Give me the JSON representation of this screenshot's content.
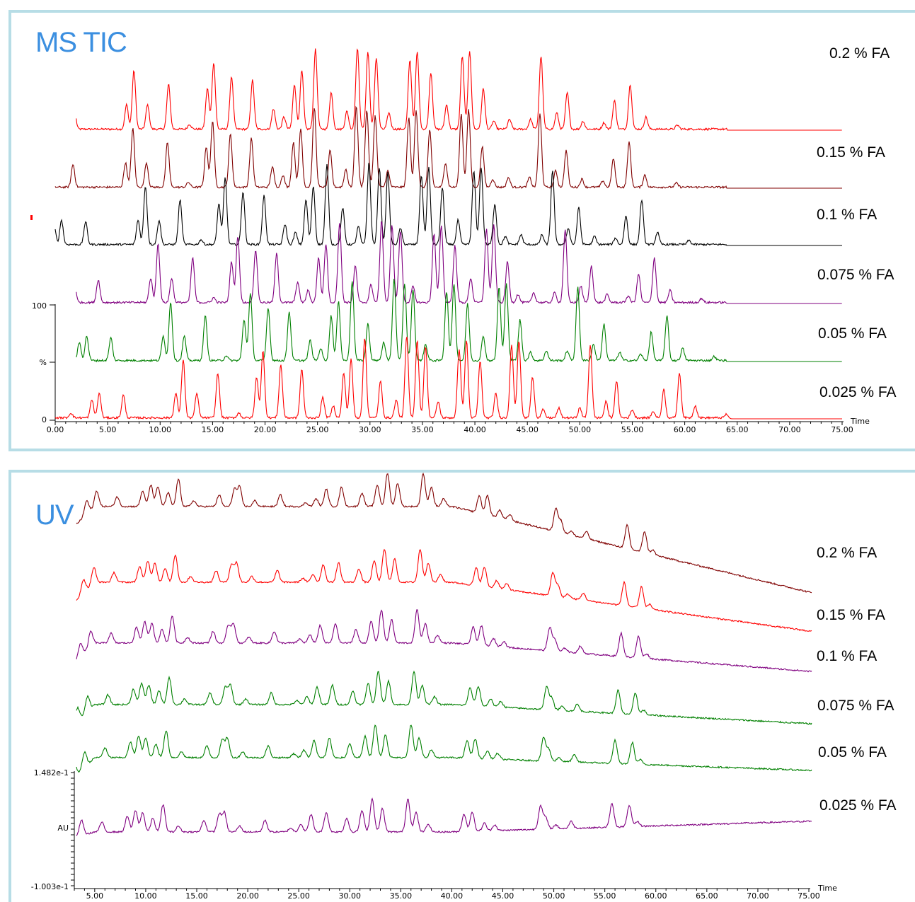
{
  "ms": {
    "title": "MS TIC",
    "y_axis": {
      "top": "100",
      "mid": "%",
      "bottom": "0"
    },
    "x_axis_title": "Time",
    "x_ticks": [
      "0.00",
      "5.00",
      "10.00",
      "15.00",
      "20.00",
      "25.00",
      "30.00",
      "35.00",
      "40.00",
      "45.00",
      "50.00",
      "55.00",
      "60.00",
      "65.00",
      "70.00",
      "75.00"
    ]
  },
  "uv": {
    "title": "UV",
    "y_axis": {
      "top": "1.482e-1",
      "mid": "AU",
      "bottom": "-1.003e-1"
    },
    "x_axis_title": "Time",
    "x_ticks": [
      "5.00",
      "10.00",
      "15.00",
      "20.00",
      "25.00",
      "30.00",
      "35.00",
      "40.00",
      "45.00",
      "50.00",
      "55.00",
      "60.00",
      "65.00",
      "70.00",
      "75.00"
    ]
  },
  "chart_data": [
    {
      "type": "line",
      "title": "MS TIC",
      "xlabel": "Time",
      "ylabel": "%",
      "xlim": [
        0,
        75
      ],
      "ylim": [
        0,
        100
      ],
      "series": [
        {
          "name": "0.2 % FA",
          "color": "#ff0000",
          "x_range": [
            2,
            75
          ]
        },
        {
          "name": "0.15 % FA",
          "color": "#800000",
          "x_range": [
            0,
            75
          ]
        },
        {
          "name": "0.1 % FA",
          "color": "#000000",
          "x_range": [
            0,
            75
          ]
        },
        {
          "name": "0.075 % FA",
          "color": "#800080",
          "x_range": [
            2,
            75
          ]
        },
        {
          "name": "0.05 % FA",
          "color": "#008000",
          "x_range": [
            2,
            75
          ]
        },
        {
          "name": "0.025 % FA",
          "color": "#ff0000",
          "x_range": [
            0,
            75
          ]
        }
      ],
      "peaks": [
        [
          1.5,
          0.06
        ],
        [
          3.5,
          0.22
        ],
        [
          4.2,
          0.3
        ],
        [
          6.5,
          0.28
        ],
        [
          11.5,
          0.3
        ],
        [
          12.2,
          0.72
        ],
        [
          13.5,
          0.3
        ],
        [
          15.5,
          0.55
        ],
        [
          17.5,
          0.06
        ],
        [
          19.2,
          0.5
        ],
        [
          19.8,
          0.82
        ],
        [
          21.5,
          0.65
        ],
        [
          23.5,
          0.6
        ],
        [
          25.5,
          0.25
        ],
        [
          26.5,
          0.15
        ],
        [
          27.5,
          0.55
        ],
        [
          28.2,
          0.72
        ],
        [
          29.5,
          0.98
        ],
        [
          31,
          0.45
        ],
        [
          32.5,
          0.22
        ],
        [
          33.5,
          1.0
        ],
        [
          34.5,
          0.95
        ],
        [
          35.3,
          0.88
        ],
        [
          36.5,
          0.2
        ],
        [
          38.5,
          0.85
        ],
        [
          39.2,
          0.95
        ],
        [
          40.5,
          0.7
        ],
        [
          42,
          0.3
        ],
        [
          43.5,
          0.9
        ],
        [
          44.2,
          0.95
        ],
        [
          45.5,
          0.5
        ],
        [
          46.5,
          0.1
        ],
        [
          48,
          0.12
        ],
        [
          50,
          0.12
        ],
        [
          51,
          0.9
        ],
        [
          52.5,
          0.2
        ],
        [
          53.5,
          0.45
        ],
        [
          55,
          0.1
        ],
        [
          57,
          0.08
        ],
        [
          58,
          0.35
        ],
        [
          59.5,
          0.55
        ],
        [
          61,
          0.15
        ],
        [
          64,
          0.05
        ]
      ],
      "baseline_shift_per_trace_min": 1.2
    },
    {
      "type": "line",
      "title": "UV",
      "xlabel": "Time",
      "ylabel": "AU",
      "xlim": [
        3,
        75
      ],
      "ylim": [
        -0.1003,
        0.1482
      ],
      "series": [
        {
          "name": "0.2 % FA",
          "color": "#800000"
        },
        {
          "name": "0.15 % FA",
          "color": "#ff0000"
        },
        {
          "name": "0.1 % FA",
          "color": "#800080"
        },
        {
          "name": "0.075 % FA",
          "color": "#008000"
        },
        {
          "name": "0.05 % FA",
          "color": "#008000"
        },
        {
          "name": "0.025 % FA",
          "color": "#800080"
        }
      ],
      "peaks": [
        [
          4.5,
          0.35
        ],
        [
          5.5,
          0.4
        ],
        [
          7.5,
          0.25
        ],
        [
          10,
          0.4
        ],
        [
          10.8,
          0.55
        ],
        [
          11.5,
          0.5
        ],
        [
          12.5,
          0.35
        ],
        [
          13.5,
          0.7
        ],
        [
          15,
          0.15
        ],
        [
          17.5,
          0.3
        ],
        [
          19,
          0.45
        ],
        [
          19.5,
          0.5
        ],
        [
          21,
          0.15
        ],
        [
          23.5,
          0.3
        ],
        [
          26,
          0.1
        ],
        [
          27,
          0.2
        ],
        [
          28,
          0.45
        ],
        [
          29.5,
          0.5
        ],
        [
          31.5,
          0.35
        ],
        [
          33,
          0.55
        ],
        [
          34,
          0.85
        ],
        [
          35,
          0.6
        ],
        [
          37.5,
          0.85
        ],
        [
          38.3,
          0.5
        ],
        [
          39.5,
          0.2
        ],
        [
          43,
          0.45
        ],
        [
          43.8,
          0.5
        ],
        [
          45,
          0.2
        ],
        [
          46,
          0.15
        ],
        [
          50.5,
          0.6
        ],
        [
          51,
          0.3
        ],
        [
          52,
          0.1
        ],
        [
          53.5,
          0.18
        ],
        [
          57.5,
          0.6
        ],
        [
          59.2,
          0.55
        ],
        [
          60,
          0.12
        ]
      ]
    }
  ]
}
